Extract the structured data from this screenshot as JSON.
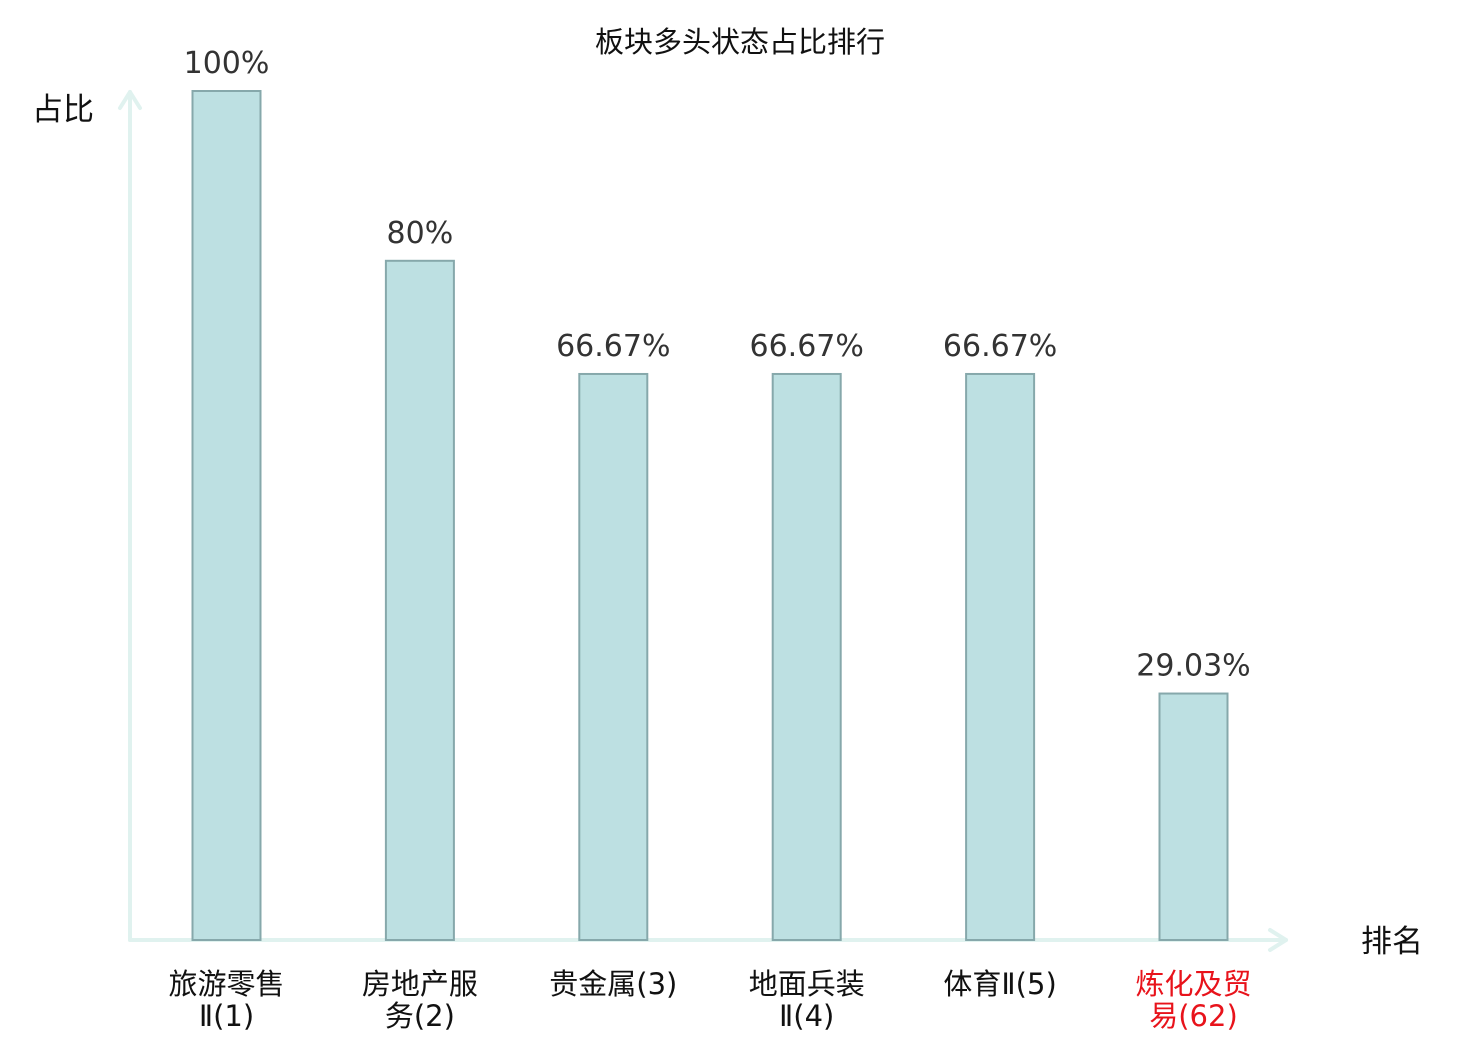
{
  "chart_data": {
    "type": "bar",
    "title": "板块多头状态占比排行",
    "xlabel": "排名",
    "ylabel": "占比",
    "categories": [
      {
        "lines": [
          "旅游零售",
          "Ⅱ(1)"
        ],
        "highlight": false
      },
      {
        "lines": [
          "房地产服",
          "务(2)"
        ],
        "highlight": false
      },
      {
        "lines": [
          "贵金属(3)"
        ],
        "highlight": false
      },
      {
        "lines": [
          "地面兵装",
          "Ⅱ(4)"
        ],
        "highlight": false
      },
      {
        "lines": [
          "体育Ⅱ(5)"
        ],
        "highlight": false
      },
      {
        "lines": [
          "炼化及贸",
          "易(62)"
        ],
        "highlight": true
      }
    ],
    "values": [
      100,
      80,
      66.67,
      66.67,
      66.67,
      29.03
    ],
    "value_labels": [
      "100%",
      "80%",
      "66.67%",
      "66.67%",
      "66.67%",
      "29.03%"
    ],
    "ylim": [
      0,
      100
    ],
    "grid": false,
    "colors": {
      "bar_fill": "#bde0e2",
      "bar_stroke": "#86a8ab",
      "axis": "#e0f2ef",
      "highlight_text": "#e8131b",
      "normal_text": "#111111"
    }
  }
}
